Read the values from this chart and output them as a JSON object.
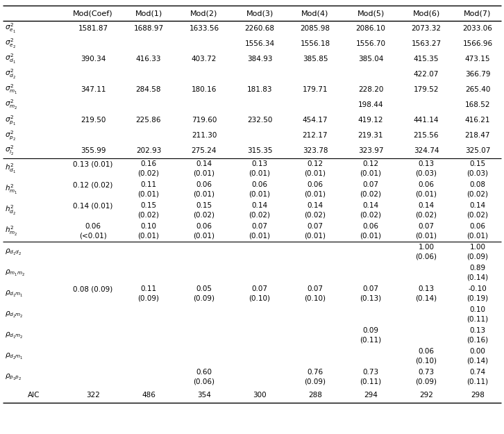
{
  "col_headers": [
    "",
    "Mod(Coef)",
    "Mod(1)",
    "Mod(2)",
    "Mod(3)",
    "Mod(4)",
    "Mod(5)",
    "Mod(6)",
    "Mod(7)"
  ],
  "rows": [
    {
      "label": "sigma_e1_2",
      "label_text": "$\\sigma_{e_1}^{2}$",
      "values": [
        "",
        "1581.87",
        "1688.97",
        "1633.56",
        "2260.68",
        "2085.98",
        "2086.10",
        "2073.32",
        "2033.06"
      ],
      "two_line": false
    },
    {
      "label": "sigma_e2_2",
      "label_text": "$\\sigma_{e_2}^{2}$",
      "values": [
        "",
        "",
        "",
        "",
        "1556.34",
        "1556.18",
        "1556.70",
        "1563.27",
        "1566.96"
      ],
      "two_line": false
    },
    {
      "label": "sigma_d1_2",
      "label_text": "$\\sigma_{d_1}^{2}$",
      "values": [
        "",
        "390.34",
        "416.33",
        "403.72",
        "384.93",
        "385.85",
        "385.04",
        "415.35",
        "473.15"
      ],
      "two_line": false
    },
    {
      "label": "sigma_d2_2",
      "label_text": "$\\sigma_{d_2}^{2}$",
      "values": [
        "",
        "",
        "",
        "",
        "",
        "",
        "",
        "422.07",
        "366.79"
      ],
      "two_line": false
    },
    {
      "label": "sigma_m1_2",
      "label_text": "$\\sigma_{m_1}^{2}$",
      "values": [
        "",
        "347.11",
        "284.58",
        "180.16",
        "181.83",
        "179.71",
        "228.20",
        "179.52",
        "265.40"
      ],
      "two_line": false
    },
    {
      "label": "sigma_m2_2",
      "label_text": "$\\sigma_{m_2}^{2}$",
      "values": [
        "",
        "",
        "",
        "",
        "",
        "",
        "198.44",
        "",
        "168.52"
      ],
      "two_line": false
    },
    {
      "label": "sigma_p1_2",
      "label_text": "$\\sigma_{p_1}^{2}$",
      "values": [
        "",
        "219.50",
        "225.86",
        "719.60",
        "232.50",
        "454.17",
        "419.12",
        "441.14",
        "416.21"
      ],
      "two_line": false
    },
    {
      "label": "sigma_p2_2",
      "label_text": "$\\sigma_{p_2}^{2}$",
      "values": [
        "",
        "",
        "",
        "211.30",
        "",
        "212.17",
        "219.31",
        "215.56",
        "218.47"
      ],
      "two_line": false
    },
    {
      "label": "sigma_l2_2",
      "label_text": "$\\sigma_{l_2}^{2}$",
      "values": [
        "",
        "355.99",
        "202.93",
        "275.24",
        "315.35",
        "323.78",
        "323.97",
        "324.74",
        "325.07"
      ],
      "two_line": false
    },
    {
      "label": "h_d1_2",
      "label_text": "$h_{d_1}^{2}$",
      "values_line1": [
        "",
        "0.13 (0.01)",
        "0.16",
        "0.14",
        "0.13",
        "0.12",
        "0.12",
        "0.13",
        "0.15"
      ],
      "values_line2": [
        "",
        "",
        "(0.02)",
        "(0.01)",
        "(0.01)",
        "(0.01)",
        "(0.01)",
        "(0.03)",
        "(0.03)"
      ],
      "two_line": true
    },
    {
      "label": "h_m1_2",
      "label_text": "$h_{m_1}^{2}$",
      "values_line1": [
        "",
        "0.12 (0.02)",
        "0.11",
        "0.06",
        "0.06",
        "0.06",
        "0.07",
        "0.06",
        "0.08"
      ],
      "values_line2": [
        "",
        "",
        "(0.01)",
        "(0.01)",
        "(0.01)",
        "(0.01)",
        "(0.02)",
        "(0.01)",
        "(0.02)"
      ],
      "two_line": true
    },
    {
      "label": "h_d2_2",
      "label_text": "$h_{d_2}^{2}$",
      "values_line1": [
        "",
        "0.14 (0.01)",
        "0.15",
        "0.15",
        "0.14",
        "0.14",
        "0.14",
        "0.14",
        "0.14"
      ],
      "values_line2": [
        "",
        "",
        "(0.02)",
        "(0.02)",
        "(0.02)",
        "(0.02)",
        "(0.02)",
        "(0.02)",
        "(0.02)"
      ],
      "two_line": true
    },
    {
      "label": "h_m2_2",
      "label_text": "$h_{m_2}^{2}$",
      "values_line1": [
        "",
        "0.06",
        "0.10",
        "0.06",
        "0.07",
        "0.07",
        "0.06",
        "0.07",
        "0.06"
      ],
      "values_line2": [
        "",
        "(<0.01)",
        "(0.01)",
        "(0.01)",
        "(0.01)",
        "(0.01)",
        "(0.01)",
        "(0.01)",
        "(0.01)"
      ],
      "two_line": true
    },
    {
      "label": "rho_d1d2",
      "label_text": "$\\rho_{d_1d_2}$",
      "values_line1": [
        "",
        "",
        "",
        "",
        "",
        "",
        "",
        "1.00",
        "1.00"
      ],
      "values_line2": [
        "",
        "",
        "",
        "",
        "",
        "",
        "",
        "(0.06)",
        "(0.09)"
      ],
      "two_line": true
    },
    {
      "label": "rho_m1m2",
      "label_text": "$\\rho_{m_1m_2}$",
      "values_line1": [
        "",
        "",
        "",
        "",
        "",
        "",
        "",
        "",
        "0.89"
      ],
      "values_line2": [
        "",
        "",
        "",
        "",
        "",
        "",
        "",
        "",
        "(0.14)"
      ],
      "two_line": true
    },
    {
      "label": "rho_d1m1",
      "label_text": "$\\rho_{d_1m_1}$",
      "values_line1": [
        "",
        "0.08 (0.09)",
        "0.11",
        "0.05",
        "0.07",
        "0.07",
        "0.07",
        "0.13",
        "-0.10"
      ],
      "values_line2": [
        "",
        "",
        "(0.09)",
        "(0.09)",
        "(0.10)",
        "(0.10)",
        "(0.13)",
        "(0.14)",
        "(0.19)"
      ],
      "two_line": true
    },
    {
      "label": "rho_d2m2",
      "label_text": "$\\rho_{d_2m_2}$",
      "values_line1": [
        "",
        "",
        "",
        "",
        "",
        "",
        "",
        "",
        "0.10"
      ],
      "values_line2": [
        "",
        "",
        "",
        "",
        "",
        "",
        "",
        "",
        "(0.11)"
      ],
      "two_line": true
    },
    {
      "label": "rho_d1m2",
      "label_text": "$\\rho_{d_1m_2}$",
      "values_line1": [
        "",
        "",
        "",
        "",
        "",
        "",
        "0.09",
        "",
        "0.13"
      ],
      "values_line2": [
        "",
        "",
        "",
        "",
        "",
        "",
        "(0.11)",
        "",
        "(0.16)"
      ],
      "two_line": true
    },
    {
      "label": "rho_d2m1",
      "label_text": "$\\rho_{d_2m_1}$",
      "values_line1": [
        "",
        "",
        "",
        "",
        "",
        "",
        "",
        "0.06",
        "0.00"
      ],
      "values_line2": [
        "",
        "",
        "",
        "",
        "",
        "",
        "",
        "(0.10)",
        "(0.14)"
      ],
      "two_line": true
    },
    {
      "label": "rho_p1p2",
      "label_text": "$\\rho_{p_1p_2}$",
      "values_line1": [
        "",
        "",
        "",
        "0.60",
        "",
        "0.76",
        "0.73",
        "0.73",
        "0.74"
      ],
      "values_line2": [
        "",
        "",
        "",
        "(0.06)",
        "",
        "(0.09)",
        "(0.11)",
        "(0.09)",
        "(0.11)"
      ],
      "two_line": true
    },
    {
      "label": "AIC",
      "label_text": "AIC",
      "values": [
        "",
        "322",
        "486",
        "354",
        "300",
        "288",
        "294",
        "292",
        "298"
      ],
      "two_line": false
    }
  ],
  "separator_after_rows": [
    8,
    12
  ],
  "bg_color": "#ffffff",
  "text_color": "#000000",
  "font_size": 7.5,
  "header_font_size": 8.0
}
